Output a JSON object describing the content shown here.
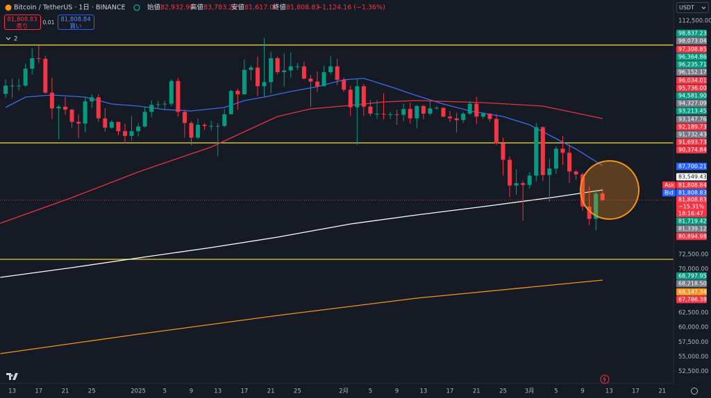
{
  "chart_data": {
    "type": "candlestick",
    "header": {
      "symbol": "Bitcoin / TetherUS · 1日 · BINANCE",
      "open_label": "始値",
      "open": "82,932.99",
      "high_label": "高値",
      "high": "83,783.26",
      "low_label": "安値",
      "low": "81,617.00",
      "close_label": "終値",
      "close": "81,808.83",
      "change": "−1,124.16 (−1.36%)"
    },
    "trade": {
      "sell_price": "81,808.83",
      "sell_label": "売り",
      "spread": "0.01",
      "buy_price": "81,808.84",
      "buy_label": "買い"
    },
    "indicators_count": "2",
    "currency": "USDT",
    "up_color": "#089981",
    "down_color": "#f23645",
    "xlim": [
      -0.84,
      100.7
    ],
    "xticks": [
      {
        "value": 1,
        "label": "13"
      },
      {
        "value": 5,
        "label": "17"
      },
      {
        "value": 9,
        "label": "21"
      },
      {
        "value": 13,
        "label": "25"
      },
      {
        "value": 20,
        "label": "2025"
      },
      {
        "value": 24,
        "label": "5"
      },
      {
        "value": 28,
        "label": "9"
      },
      {
        "value": 32,
        "label": "13"
      },
      {
        "value": 36,
        "label": "17"
      },
      {
        "value": 40,
        "label": "21"
      },
      {
        "value": 44,
        "label": "25"
      },
      {
        "value": 51,
        "label": "2月"
      },
      {
        "value": 55,
        "label": "5"
      },
      {
        "value": 59,
        "label": "9"
      },
      {
        "value": 63,
        "label": "13"
      },
      {
        "value": 67,
        "label": "17"
      },
      {
        "value": 71,
        "label": "21"
      },
      {
        "value": 75,
        "label": "25"
      },
      {
        "value": 79,
        "label": "3月"
      },
      {
        "value": 83,
        "label": "5"
      },
      {
        "value": 87,
        "label": "9"
      },
      {
        "value": 91,
        "label": "13"
      },
      {
        "value": 95,
        "label": "17"
      },
      {
        "value": 99,
        "label": "21"
      }
    ],
    "ylim": [
      50414,
      116061
    ],
    "yticks": [
      {
        "value": 112500,
        "label": "112,500.00"
      },
      {
        "value": 72500,
        "label": "72,500.00"
      },
      {
        "value": 70000,
        "label": "70,000.00"
      },
      {
        "value": 62500,
        "label": "62,500.00"
      },
      {
        "value": 60000,
        "label": "60,000.00"
      },
      {
        "value": 57500,
        "label": "57,500.00"
      },
      {
        "value": 55000,
        "label": "55,000.00"
      },
      {
        "value": 52500,
        "label": "52,500.00"
      }
    ],
    "x": [
      0,
      1,
      2,
      3,
      4,
      5,
      6,
      7,
      8,
      9,
      10,
      11,
      12,
      13,
      14,
      15,
      16,
      17,
      18,
      19,
      20,
      21,
      22,
      23,
      24,
      25,
      26,
      27,
      28,
      29,
      30,
      31,
      32,
      33,
      34,
      35,
      36,
      37,
      38,
      39,
      40,
      41,
      42,
      43,
      44,
      45,
      46,
      47,
      48,
      49,
      50,
      51,
      52,
      53,
      54,
      55,
      56,
      57,
      58,
      59,
      60,
      61,
      62,
      63,
      64,
      65,
      66,
      67,
      68,
      69,
      70,
      71,
      72,
      73,
      74,
      75,
      76,
      77,
      78,
      79,
      80,
      81,
      82,
      83,
      84,
      85,
      86,
      87,
      88,
      89,
      90
    ],
    "ohlc": [
      [
        100000,
        102500,
        99300,
        101400
      ],
      [
        101400,
        102600,
        99300,
        101400
      ],
      [
        101400,
        102600,
        100600,
        101400
      ],
      [
        101400,
        105200,
        101200,
        104300
      ],
      [
        104300,
        107800,
        103300,
        106100
      ],
      [
        106100,
        108300,
        105300,
        106000
      ],
      [
        106000,
        106500,
        100000,
        100200
      ],
      [
        100200,
        102800,
        95700,
        97500
      ],
      [
        97500,
        98100,
        92200,
        97800
      ],
      [
        97800,
        99500,
        96400,
        97300
      ],
      [
        97300,
        97400,
        94200,
        95200
      ],
      [
        95200,
        96500,
        92400,
        94900
      ],
      [
        94900,
        99500,
        93400,
        98700
      ],
      [
        98700,
        99900,
        97600,
        99400
      ],
      [
        99400,
        99900,
        95200,
        95800
      ],
      [
        95800,
        97500,
        93500,
        94200
      ],
      [
        94200,
        95500,
        94000,
        95200
      ],
      [
        95200,
        95200,
        92900,
        93600
      ],
      [
        93600,
        94900,
        91500,
        92800
      ],
      [
        92800,
        96200,
        92000,
        93600
      ],
      [
        93600,
        95000,
        92700,
        94400
      ],
      [
        94400,
        97800,
        94200,
        96900
      ],
      [
        96900,
        98900,
        96000,
        98100
      ],
      [
        98100,
        98800,
        97500,
        98200
      ],
      [
        98200,
        98800,
        97200,
        98300
      ],
      [
        98300,
        102500,
        97900,
        102200
      ],
      [
        102200,
        102700,
        96100,
        96900
      ],
      [
        96900,
        97300,
        92500,
        95000
      ],
      [
        95000,
        95300,
        91200,
        92500
      ],
      [
        92500,
        95800,
        92200,
        94700
      ],
      [
        94700,
        95000,
        93800,
        94500
      ],
      [
        94500,
        95400,
        93700,
        94500
      ],
      [
        94500,
        95000,
        89300,
        94500
      ],
      [
        94500,
        97400,
        94300,
        96500
      ],
      [
        96500,
        100700,
        96500,
        100500
      ],
      [
        100500,
        100900,
        97300,
        99900
      ],
      [
        99900,
        105900,
        99900,
        104100
      ],
      [
        104100,
        104900,
        102300,
        104500
      ],
      [
        104500,
        106400,
        99600,
        101300
      ],
      [
        101300,
        109600,
        99500,
        102000
      ],
      [
        102000,
        107200,
        100100,
        106100
      ],
      [
        106100,
        106400,
        103300,
        103700
      ],
      [
        103700,
        106900,
        101200,
        104000
      ],
      [
        104000,
        107100,
        102700,
        104700
      ],
      [
        104700,
        105300,
        104100,
        104700
      ],
      [
        104700,
        105500,
        102500,
        102600
      ],
      [
        102600,
        103200,
        97800,
        102100
      ],
      [
        102100,
        103800,
        100300,
        101300
      ],
      [
        101300,
        104800,
        101300,
        103700
      ],
      [
        103700,
        106500,
        103300,
        104700
      ],
      [
        104700,
        106000,
        101500,
        102400
      ],
      [
        102400,
        102800,
        100300,
        100700
      ],
      [
        100700,
        101400,
        96200,
        97700
      ],
      [
        97700,
        102500,
        91200,
        101300
      ],
      [
        101300,
        101700,
        96200,
        97800
      ],
      [
        97800,
        99000,
        96200,
        96600
      ],
      [
        96600,
        99000,
        95700,
        96600
      ],
      [
        96600,
        100100,
        95600,
        96500
      ],
      [
        96500,
        96900,
        95700,
        96500
      ],
      [
        96500,
        97300,
        94700,
        96400
      ],
      [
        96400,
        98300,
        95300,
        97400
      ],
      [
        97400,
        98500,
        94900,
        95800
      ],
      [
        95800,
        98100,
        94100,
        97900
      ],
      [
        97900,
        98100,
        95700,
        96600
      ],
      [
        96600,
        98800,
        96300,
        97500
      ],
      [
        97500,
        97900,
        97300,
        97600
      ],
      [
        97600,
        97700,
        96000,
        96100
      ],
      [
        96100,
        97000,
        95200,
        95800
      ],
      [
        95800,
        96800,
        93400,
        95500
      ],
      [
        95500,
        96900,
        95000,
        96600
      ],
      [
        96600,
        98800,
        96400,
        98300
      ],
      [
        98300,
        99500,
        94800,
        96100
      ],
      [
        96100,
        96900,
        95700,
        96600
      ],
      [
        96600,
        96700,
        95200,
        95700
      ],
      [
        95700,
        96500,
        91200,
        91500
      ],
      [
        91500,
        92500,
        86000,
        88700
      ],
      [
        88700,
        89300,
        82300,
        84300
      ],
      [
        84300,
        87100,
        82700,
        84700
      ],
      [
        84700,
        85100,
        78300,
        84400
      ],
      [
        84400,
        86600,
        83800,
        86000
      ],
      [
        86000,
        95000,
        85000,
        94300
      ],
      [
        94300,
        94400,
        85100,
        86100
      ],
      [
        86100,
        88900,
        81500,
        87200
      ],
      [
        87200,
        91000,
        86300,
        90600
      ],
      [
        90600,
        92800,
        87800,
        89900
      ],
      [
        89900,
        91300,
        84700,
        86700
      ],
      [
        86700,
        86900,
        85300,
        86200
      ],
      [
        86200,
        86500,
        80000,
        80700
      ],
      [
        80700,
        84100,
        77500,
        78600
      ],
      [
        78600,
        83600,
        76600,
        82900
      ],
      [
        82932.99,
        83783.26,
        81617.0,
        81808.83
      ]
    ],
    "last_price": 81808.83,
    "lines": [
      {
        "color": "#3a6df0",
        "x": [
          0,
          3,
          7,
          12,
          16,
          20,
          24,
          28,
          33,
          36,
          39,
          43,
          47,
          51,
          54,
          58,
          62,
          66,
          70,
          75,
          79,
          83,
          86,
          90
        ],
        "values": [
          97661,
          99442,
          99798,
          99442,
          98255,
          97899,
          97305,
          97068,
          97661,
          98848,
          99442,
          100392,
          101223,
          102410,
          102647,
          101223,
          99679,
          98255,
          97068,
          96118,
          94693,
          92319,
          90539,
          87700
        ]
      },
      {
        "color": "#e8343f",
        "x": [
          -0.8,
          10,
          20,
          31,
          36,
          41,
          46,
          52,
          57,
          62,
          72,
          81,
          90
        ],
        "values": [
          77837,
          82229,
          86621,
          90895,
          93506,
          96118,
          97424,
          98017,
          98611,
          98848,
          98492,
          97899,
          95762
        ]
      },
      {
        "color": "#ffffff",
        "x": [
          -0.8,
          10,
          20,
          31,
          41,
          52,
          62,
          72,
          83,
          90
        ],
        "values": [
          68577,
          70239,
          71901,
          73682,
          75462,
          77718,
          79261,
          80686,
          82348,
          83535
        ]
      },
      {
        "color": "#f7931a",
        "x": [
          -0.8,
          20,
          41,
          62,
          90
        ],
        "values": [
          55519,
          58843,
          62048,
          65016,
          68102
        ]
      }
    ],
    "hlines": {
      "color": "#e6d23a",
      "values": [
        108350,
        91600,
        71660
      ]
    },
    "price_labels": [
      {
        "text": "98,837.23",
        "color": "#089981"
      },
      {
        "text": "98,073.04",
        "color": "#787b86"
      },
      {
        "text": "97,308.85",
        "color": "#f23645"
      },
      {
        "text": "96,364.86",
        "color": "#089981"
      },
      {
        "text": "96,235.71",
        "color": "#089981"
      },
      {
        "text": "96,152.17",
        "color": "#787b86"
      },
      {
        "text": "96,034.01",
        "color": "#f23645"
      },
      {
        "text": "95,736.00",
        "color": "#f23645"
      },
      {
        "text": "94,581.90",
        "color": "#089981"
      },
      {
        "text": "94,327.09",
        "color": "#787b86"
      },
      {
        "text": "93,213.45",
        "color": "#089981"
      },
      {
        "text": "93,147.76",
        "color": "#787b86"
      },
      {
        "text": "92,189.73",
        "color": "#f23645"
      },
      {
        "text": "91,732.43",
        "color": "#787b86"
      },
      {
        "text": "91,693.73",
        "color": "#f23645"
      },
      {
        "text": "90,374.84",
        "color": "#f23645"
      },
      {
        "text": "87,700.21",
        "color": "#2962ff"
      },
      {
        "text": "83,549.43",
        "color": "#ffffff"
      },
      {
        "text": "81,808.84",
        "color": "#f23645",
        "tag": "Ask"
      },
      {
        "text": "81,808.83",
        "color": "#2962ff",
        "tag": "Bid"
      },
      {
        "text": "81,808.83",
        "color": "#f23645",
        "lines": [
          "−15.31%",
          "18:16:47"
        ]
      },
      {
        "text": "81,719.42",
        "color": "#089981"
      },
      {
        "text": "81,339.12",
        "color": "#787b86"
      },
      {
        "text": "80,894.98",
        "color": "#f23645"
      },
      {
        "text": "68,797.95",
        "color": "#089981"
      },
      {
        "text": "68,218.50",
        "color": "#787b86"
      },
      {
        "text": "68,147.34",
        "color": "#f7931a"
      },
      {
        "text": "67,786.38",
        "color": "#f23645"
      }
    ]
  }
}
